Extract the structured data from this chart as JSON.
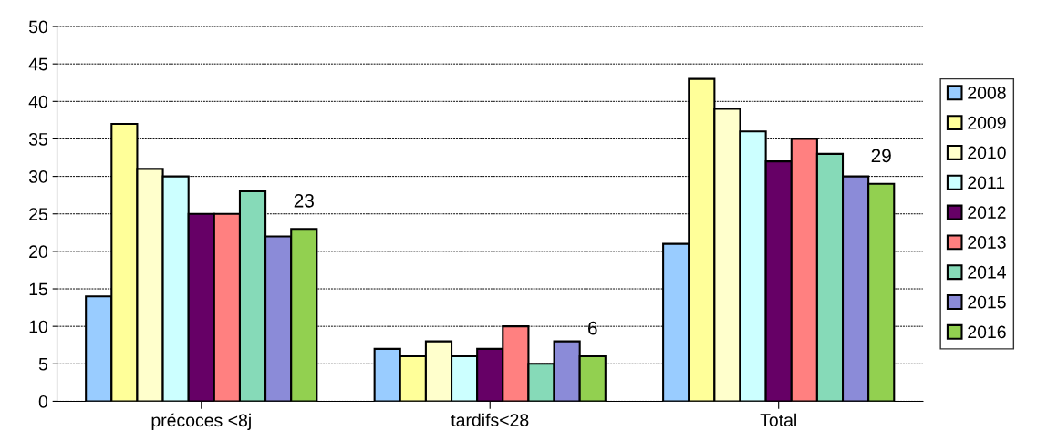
{
  "chart_data": {
    "type": "bar",
    "categories": [
      "précoces <8j",
      "tardifs<28",
      "Total"
    ],
    "series": [
      {
        "name": "2008",
        "color": "#99ccff",
        "values": [
          14,
          7,
          21
        ]
      },
      {
        "name": "2009",
        "color": "#ffff99",
        "values": [
          37,
          6,
          43
        ]
      },
      {
        "name": "2010",
        "color": "#ffffcc",
        "values": [
          31,
          8,
          39
        ]
      },
      {
        "name": "2011",
        "color": "#ccffff",
        "values": [
          30,
          6,
          36
        ]
      },
      {
        "name": "2012",
        "color": "#660066",
        "values": [
          25,
          7,
          32
        ]
      },
      {
        "name": "2013",
        "color": "#ff8080",
        "values": [
          25,
          10,
          35
        ]
      },
      {
        "name": "2014",
        "color": "#86dab8",
        "values": [
          28,
          5,
          33
        ]
      },
      {
        "name": "2015",
        "color": "#8b8bd8",
        "values": [
          22,
          8,
          30
        ]
      },
      {
        "name": "2016",
        "color": "#92d050",
        "values": [
          23,
          6,
          29
        ],
        "value_labels": [
          "23",
          "6",
          "29"
        ]
      }
    ],
    "ylim": [
      0,
      50
    ],
    "yticks": [
      0,
      5,
      10,
      15,
      20,
      25,
      30,
      35,
      40,
      45,
      50
    ],
    "grid": "y",
    "legend": "right"
  }
}
